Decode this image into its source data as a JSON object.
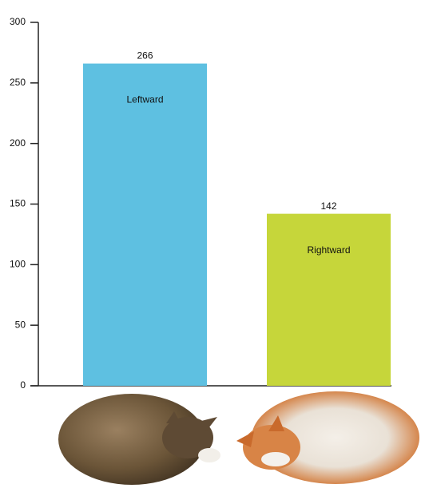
{
  "chart_data": {
    "type": "bar",
    "categories": [
      "Leftward",
      "Rightward"
    ],
    "values": [
      266,
      142
    ],
    "colors": [
      "#5ec0e1",
      "#c6d63a"
    ],
    "ylim": [
      0,
      300
    ],
    "yticks": [
      0,
      50,
      100,
      150,
      200,
      250,
      300
    ]
  }
}
